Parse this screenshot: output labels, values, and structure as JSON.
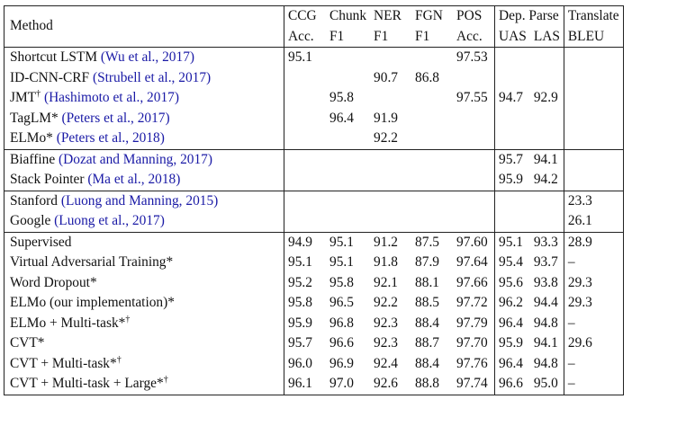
{
  "header": {
    "method": "Method",
    "ccg": [
      "CCG",
      "Acc."
    ],
    "chunk": [
      "Chunk",
      "F1"
    ],
    "ner": [
      "NER",
      "F1"
    ],
    "fgn": [
      "FGN",
      "F1"
    ],
    "pos": [
      "POS",
      "Acc."
    ],
    "dep_parse": "Dep. Parse",
    "uas": "UAS",
    "las": "LAS",
    "translate": [
      "Translate",
      "BLEU"
    ]
  },
  "groups": [
    {
      "rows": [
        {
          "name": "Shortcut LSTM",
          "sup": "",
          "cite": "(Wu et al., 2017)",
          "vals": [
            "95.1",
            "",
            "",
            "",
            "97.53",
            "",
            "",
            ""
          ]
        },
        {
          "name": "ID-CNN-CRF",
          "sup": "",
          "cite": "(Strubell et al., 2017)",
          "vals": [
            "",
            "",
            "90.7",
            "86.8",
            "",
            "",
            "",
            ""
          ]
        },
        {
          "name": "JMT",
          "sup": "†",
          "cite": "(Hashimoto et al., 2017)",
          "vals": [
            "",
            "95.8",
            "",
            "",
            "97.55",
            "94.7",
            "92.9",
            ""
          ]
        },
        {
          "name": "TagLM*",
          "sup": "",
          "cite": "(Peters et al., 2017)",
          "vals": [
            "",
            "96.4",
            "91.9",
            "",
            "",
            "",
            "",
            ""
          ]
        },
        {
          "name": "ELMo*",
          "sup": "",
          "cite": "(Peters et al., 2018)",
          "vals": [
            "",
            "",
            "92.2",
            "",
            "",
            "",
            "",
            ""
          ]
        }
      ]
    },
    {
      "rows": [
        {
          "name": "Biaffine",
          "sup": "",
          "cite": "(Dozat and Manning, 2017)",
          "vals": [
            "",
            "",
            "",
            "",
            "",
            "95.7",
            "94.1",
            ""
          ]
        },
        {
          "name": "Stack Pointer",
          "sup": "",
          "cite": "(Ma et al., 2018)",
          "vals": [
            "",
            "",
            "",
            "",
            "",
            "95.9",
            "94.2",
            ""
          ]
        }
      ]
    },
    {
      "rows": [
        {
          "name": "Stanford",
          "sup": "",
          "cite": "(Luong and Manning, 2015)",
          "vals": [
            "",
            "",
            "",
            "",
            "",
            "",
            "",
            "23.3"
          ]
        },
        {
          "name": "Google",
          "sup": "",
          "cite": "(Luong et al., 2017)",
          "vals": [
            "",
            "",
            "",
            "",
            "",
            "",
            "",
            "26.1"
          ]
        }
      ]
    },
    {
      "rows": [
        {
          "name": "Supervised",
          "sup": "",
          "cite": "",
          "vals": [
            "94.9",
            "95.1",
            "91.2",
            "87.5",
            "97.60",
            "95.1",
            "93.3",
            "28.9"
          ]
        },
        {
          "name": "Virtual Adversarial Training*",
          "sup": "",
          "cite": "",
          "vals": [
            "95.1",
            "95.1",
            "91.8",
            "87.9",
            "97.64",
            "95.4",
            "93.7",
            "–"
          ]
        },
        {
          "name": "Word Dropout*",
          "sup": "",
          "cite": "",
          "vals": [
            "95.2",
            "95.8",
            "92.1",
            "88.1",
            "97.66",
            "95.6",
            "93.8",
            "29.3"
          ]
        },
        {
          "name": "ELMo (our implementation)*",
          "sup": "",
          "cite": "",
          "vals": [
            "95.8",
            "96.5",
            "92.2",
            "88.5",
            "97.72",
            "96.2",
            "94.4",
            "29.3"
          ]
        },
        {
          "name": "ELMo + Multi-task*",
          "sup": "†",
          "cite": "",
          "vals": [
            "95.9",
            "96.8",
            "92.3",
            "88.4",
            "97.79",
            "96.4",
            "94.8",
            "–"
          ],
          "bold": [
            4
          ]
        },
        {
          "name": "CVT*",
          "sup": "",
          "cite": "",
          "vals": [
            "95.7",
            "96.6",
            "92.3",
            "88.7",
            "97.70",
            "95.9",
            "94.1",
            "29.6"
          ],
          "bold": [
            7
          ]
        },
        {
          "name": "CVT + Multi-task*",
          "sup": "†",
          "cite": "",
          "vals": [
            "96.0",
            "96.9",
            "92.4",
            "88.4",
            "97.76",
            "96.4",
            "94.8",
            "–"
          ]
        },
        {
          "name": "CVT + Multi-task + Large*",
          "sup": "†",
          "cite": "",
          "vals": [
            "96.1",
            "97.0",
            "92.6",
            "88.8",
            "97.74",
            "96.6",
            "95.0",
            "–"
          ],
          "bold": [
            0,
            1,
            2,
            3,
            5,
            6
          ]
        }
      ]
    }
  ],
  "colors": {
    "citation": "#1a1aa6",
    "rule": "#222222"
  }
}
